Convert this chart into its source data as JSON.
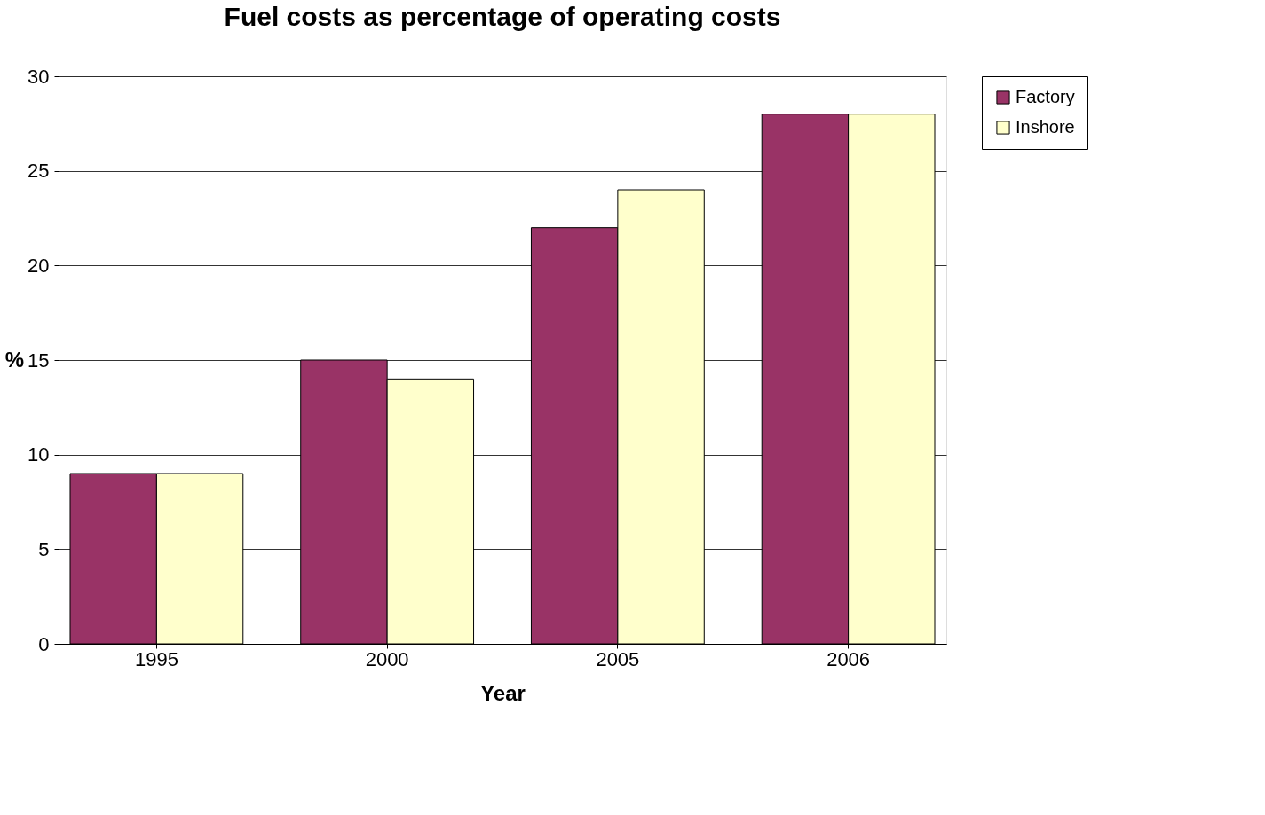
{
  "chart_data": {
    "type": "bar",
    "title": "Fuel costs as percentage of operating costs",
    "xlabel": "Year",
    "ylabel": "%",
    "categories": [
      "1995",
      "2000",
      "2005",
      "2006"
    ],
    "series": [
      {
        "name": "Factory",
        "color": "#993366",
        "values": [
          9,
          15,
          22,
          28
        ]
      },
      {
        "name": "Inshore",
        "color": "#ffffcc",
        "values": [
          9,
          14,
          24,
          28
        ]
      }
    ],
    "ylim": [
      0,
      30
    ],
    "yticks": [
      0,
      5,
      10,
      15,
      20,
      25,
      30
    ],
    "grid": "y",
    "legend": "right"
  }
}
